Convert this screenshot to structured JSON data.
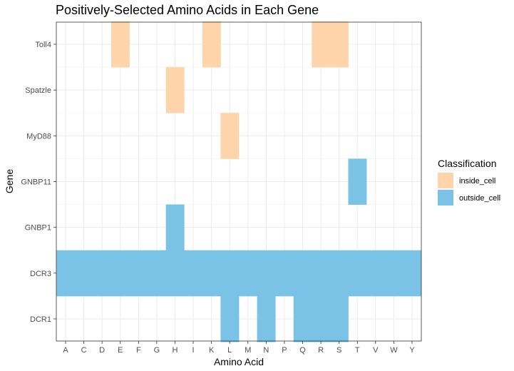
{
  "chart_data": {
    "type": "heatmap",
    "title": "Positively-Selected Amino Acids in Each Gene",
    "xlabel": "Amino Acid",
    "ylabel": "Gene",
    "x_categories": [
      "A",
      "C",
      "D",
      "E",
      "F",
      "G",
      "H",
      "I",
      "K",
      "L",
      "M",
      "N",
      "P",
      "Q",
      "R",
      "S",
      "T",
      "V",
      "W",
      "Y"
    ],
    "y_categories": [
      "DCR1",
      "DCR3",
      "GNBP1",
      "GNBP11",
      "MyD88",
      "Spatzle",
      "Toll4"
    ],
    "grid": true,
    "legend": {
      "title": "Classification",
      "position": "right",
      "entries": [
        {
          "label": "inside_cell",
          "color": "#FED5AA"
        },
        {
          "label": "outside_cell",
          "color": "#7AC3E6"
        }
      ]
    },
    "cells": [
      {
        "gene": "Toll4",
        "amino_acid": "E",
        "classification": "inside_cell"
      },
      {
        "gene": "Toll4",
        "amino_acid": "K",
        "classification": "inside_cell"
      },
      {
        "gene": "Toll4",
        "amino_acid": "R",
        "classification": "inside_cell"
      },
      {
        "gene": "Toll4",
        "amino_acid": "S",
        "classification": "inside_cell"
      },
      {
        "gene": "Spatzle",
        "amino_acid": "H",
        "classification": "inside_cell"
      },
      {
        "gene": "MyD88",
        "amino_acid": "L",
        "classification": "inside_cell"
      },
      {
        "gene": "GNBP11",
        "amino_acid": "T",
        "classification": "outside_cell"
      },
      {
        "gene": "GNBP1",
        "amino_acid": "H",
        "classification": "outside_cell"
      },
      {
        "gene": "DCR3",
        "amino_acid": "A",
        "classification": "outside_cell"
      },
      {
        "gene": "DCR3",
        "amino_acid": "C",
        "classification": "outside_cell"
      },
      {
        "gene": "DCR3",
        "amino_acid": "D",
        "classification": "outside_cell"
      },
      {
        "gene": "DCR3",
        "amino_acid": "E",
        "classification": "outside_cell"
      },
      {
        "gene": "DCR3",
        "amino_acid": "F",
        "classification": "outside_cell"
      },
      {
        "gene": "DCR3",
        "amino_acid": "G",
        "classification": "outside_cell"
      },
      {
        "gene": "DCR3",
        "amino_acid": "H",
        "classification": "outside_cell"
      },
      {
        "gene": "DCR3",
        "amino_acid": "I",
        "classification": "outside_cell"
      },
      {
        "gene": "DCR3",
        "amino_acid": "K",
        "classification": "outside_cell"
      },
      {
        "gene": "DCR3",
        "amino_acid": "L",
        "classification": "outside_cell"
      },
      {
        "gene": "DCR3",
        "amino_acid": "M",
        "classification": "outside_cell"
      },
      {
        "gene": "DCR3",
        "amino_acid": "N",
        "classification": "outside_cell"
      },
      {
        "gene": "DCR3",
        "amino_acid": "P",
        "classification": "outside_cell"
      },
      {
        "gene": "DCR3",
        "amino_acid": "Q",
        "classification": "outside_cell"
      },
      {
        "gene": "DCR3",
        "amino_acid": "R",
        "classification": "outside_cell"
      },
      {
        "gene": "DCR3",
        "amino_acid": "S",
        "classification": "outside_cell"
      },
      {
        "gene": "DCR3",
        "amino_acid": "T",
        "classification": "outside_cell"
      },
      {
        "gene": "DCR3",
        "amino_acid": "V",
        "classification": "outside_cell"
      },
      {
        "gene": "DCR3",
        "amino_acid": "W",
        "classification": "outside_cell"
      },
      {
        "gene": "DCR3",
        "amino_acid": "Y",
        "classification": "outside_cell"
      },
      {
        "gene": "DCR1",
        "amino_acid": "L",
        "classification": "outside_cell"
      },
      {
        "gene": "DCR1",
        "amino_acid": "N",
        "classification": "outside_cell"
      },
      {
        "gene": "DCR1",
        "amino_acid": "Q",
        "classification": "outside_cell"
      },
      {
        "gene": "DCR1",
        "amino_acid": "R",
        "classification": "outside_cell"
      },
      {
        "gene": "DCR1",
        "amino_acid": "S",
        "classification": "outside_cell"
      }
    ]
  }
}
